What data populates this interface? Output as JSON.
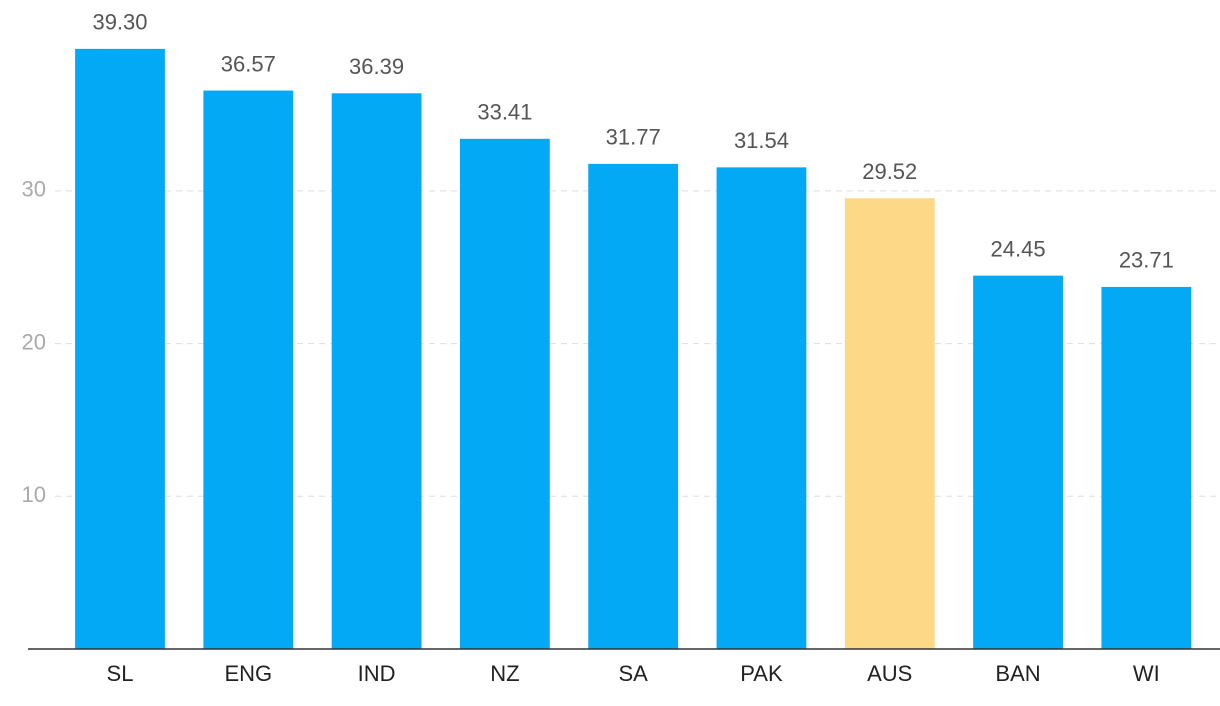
{
  "chart_data": {
    "type": "bar",
    "categories": [
      "SL",
      "ENG",
      "IND",
      "NZ",
      "SA",
      "PAK",
      "AUS",
      "BAN",
      "WI"
    ],
    "values": [
      39.3,
      36.57,
      36.39,
      33.41,
      31.77,
      31.54,
      29.52,
      24.45,
      23.71
    ],
    "value_labels": [
      "39.30",
      "36.57",
      "36.39",
      "33.41",
      "31.77",
      "31.54",
      "29.52",
      "24.45",
      "23.71"
    ],
    "colors": [
      "#03a9f4",
      "#03a9f4",
      "#03a9f4",
      "#03a9f4",
      "#03a9f4",
      "#03a9f4",
      "#fdd886",
      "#03a9f4",
      "#03a9f4"
    ],
    "ylim": [
      0,
      42.5
    ],
    "yticks": [
      10,
      20,
      30
    ],
    "grid": true
  }
}
